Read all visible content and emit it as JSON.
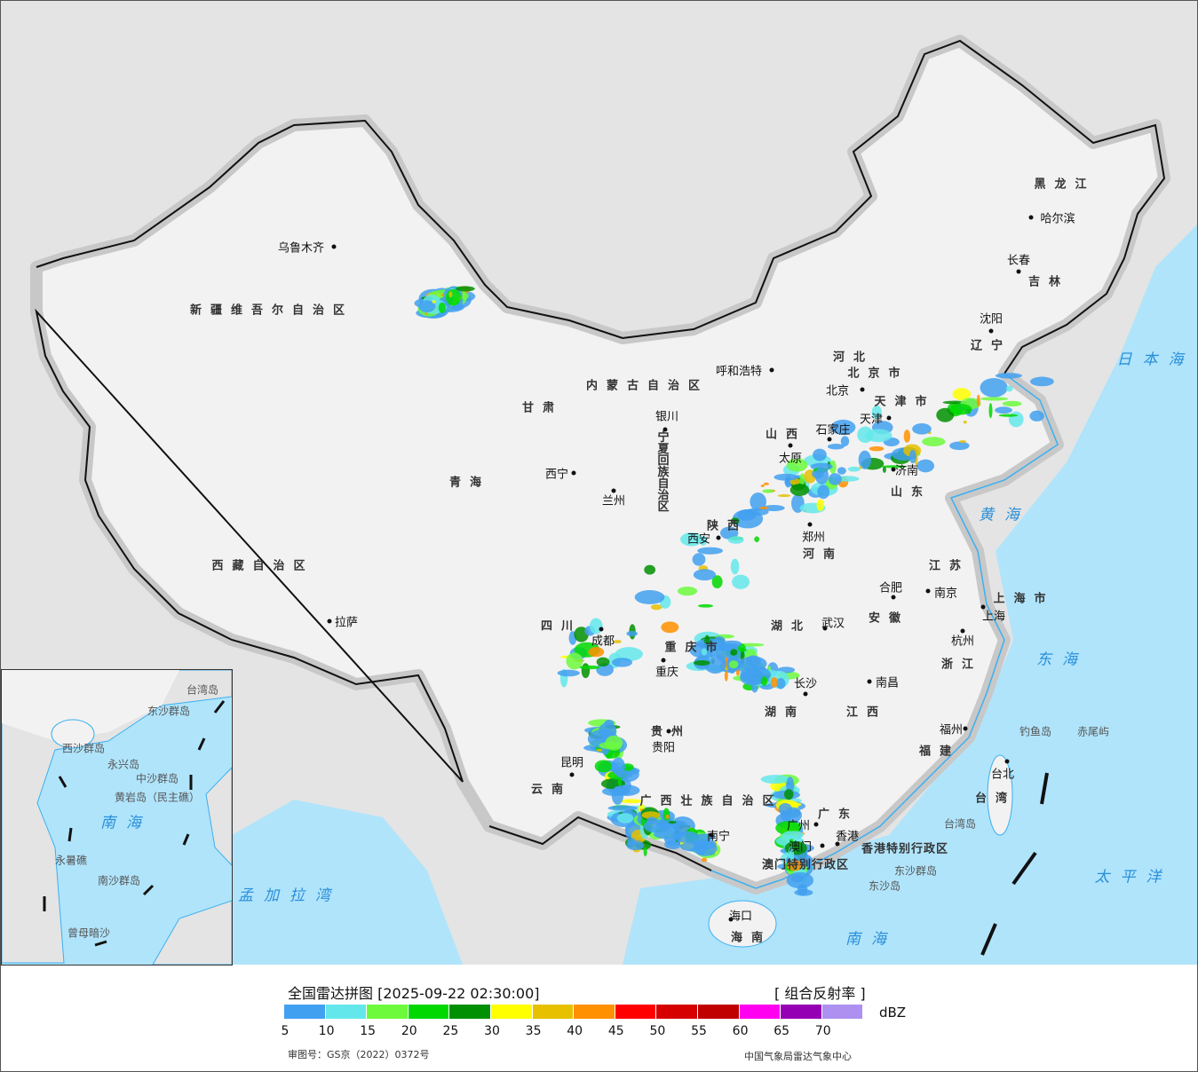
{
  "map": {
    "provinces": [
      "新疆维吾尔自治区",
      "西藏自治区",
      "青海",
      "甘肃",
      "内蒙古自治区",
      "黑龙江",
      "吉林",
      "辽宁",
      "河北",
      "山西",
      "陕西",
      "宁夏回族自治区",
      "四川",
      "重庆市",
      "贵州",
      "云南",
      "广西壮族自治区",
      "广东",
      "湖南",
      "湖北",
      "河南",
      "山东",
      "江苏",
      "安徽",
      "浙江",
      "江西",
      "福建",
      "台湾",
      "海南",
      "上海市",
      "北京市",
      "天津市",
      "香港特别行政区",
      "澳门特别行政区"
    ],
    "cities": [
      "乌鲁木齐",
      "拉萨",
      "西宁",
      "兰州",
      "银川",
      "呼和浩特",
      "北京",
      "天津",
      "石家庄",
      "太原",
      "济南",
      "郑州",
      "西安",
      "成都",
      "重庆",
      "贵阳",
      "昆明",
      "南宁",
      "广州",
      "香港",
      "澳门",
      "长沙",
      "武汉",
      "南昌",
      "合肥",
      "南京",
      "上海",
      "杭州",
      "福州",
      "台北",
      "沈阳",
      "长春",
      "哈尔滨",
      "海口"
    ],
    "seas": [
      "日本海",
      "黄海",
      "东海",
      "太平洋",
      "南海",
      "孟加拉湾"
    ],
    "islands": [
      "钓鱼岛",
      "赤尾屿",
      "台湾岛",
      "东沙群岛",
      "东沙岛"
    ],
    "inset_labels": [
      "南海",
      "中沙群岛",
      "黄岩岛（民主礁）",
      "西沙群岛",
      "永兴岛",
      "永暑礁",
      "南沙群岛",
      "曾母暗沙",
      "东沙群岛",
      "台湾岛"
    ],
    "colors": {
      "land": "#f2f2f2",
      "sea": "#b0e4fb",
      "foreign_land": "#e4e4e4",
      "border": "#111111",
      "river": "#3bb0f0"
    }
  },
  "legend": {
    "title": "全国雷达拼图 [2025-09-22 02:30:00]",
    "product": "[ 组合反射率 ]",
    "unit": "dBZ",
    "ticks": [
      "5",
      "10",
      "15",
      "20",
      "25",
      "30",
      "35",
      "40",
      "45",
      "50",
      "55",
      "60",
      "65",
      "70"
    ],
    "colors": [
      "#42a0f0",
      "#64e7eb",
      "#6dfa3d",
      "#00d800",
      "#019001",
      "#ffff00",
      "#e7c000",
      "#ff9000",
      "#ff0000",
      "#d60000",
      "#c00000",
      "#ff00f0",
      "#9600b4",
      "#ad90f0"
    ],
    "approval": "审图号：GS京（2022）0372号",
    "source": "中国气象局雷达气象中心"
  }
}
